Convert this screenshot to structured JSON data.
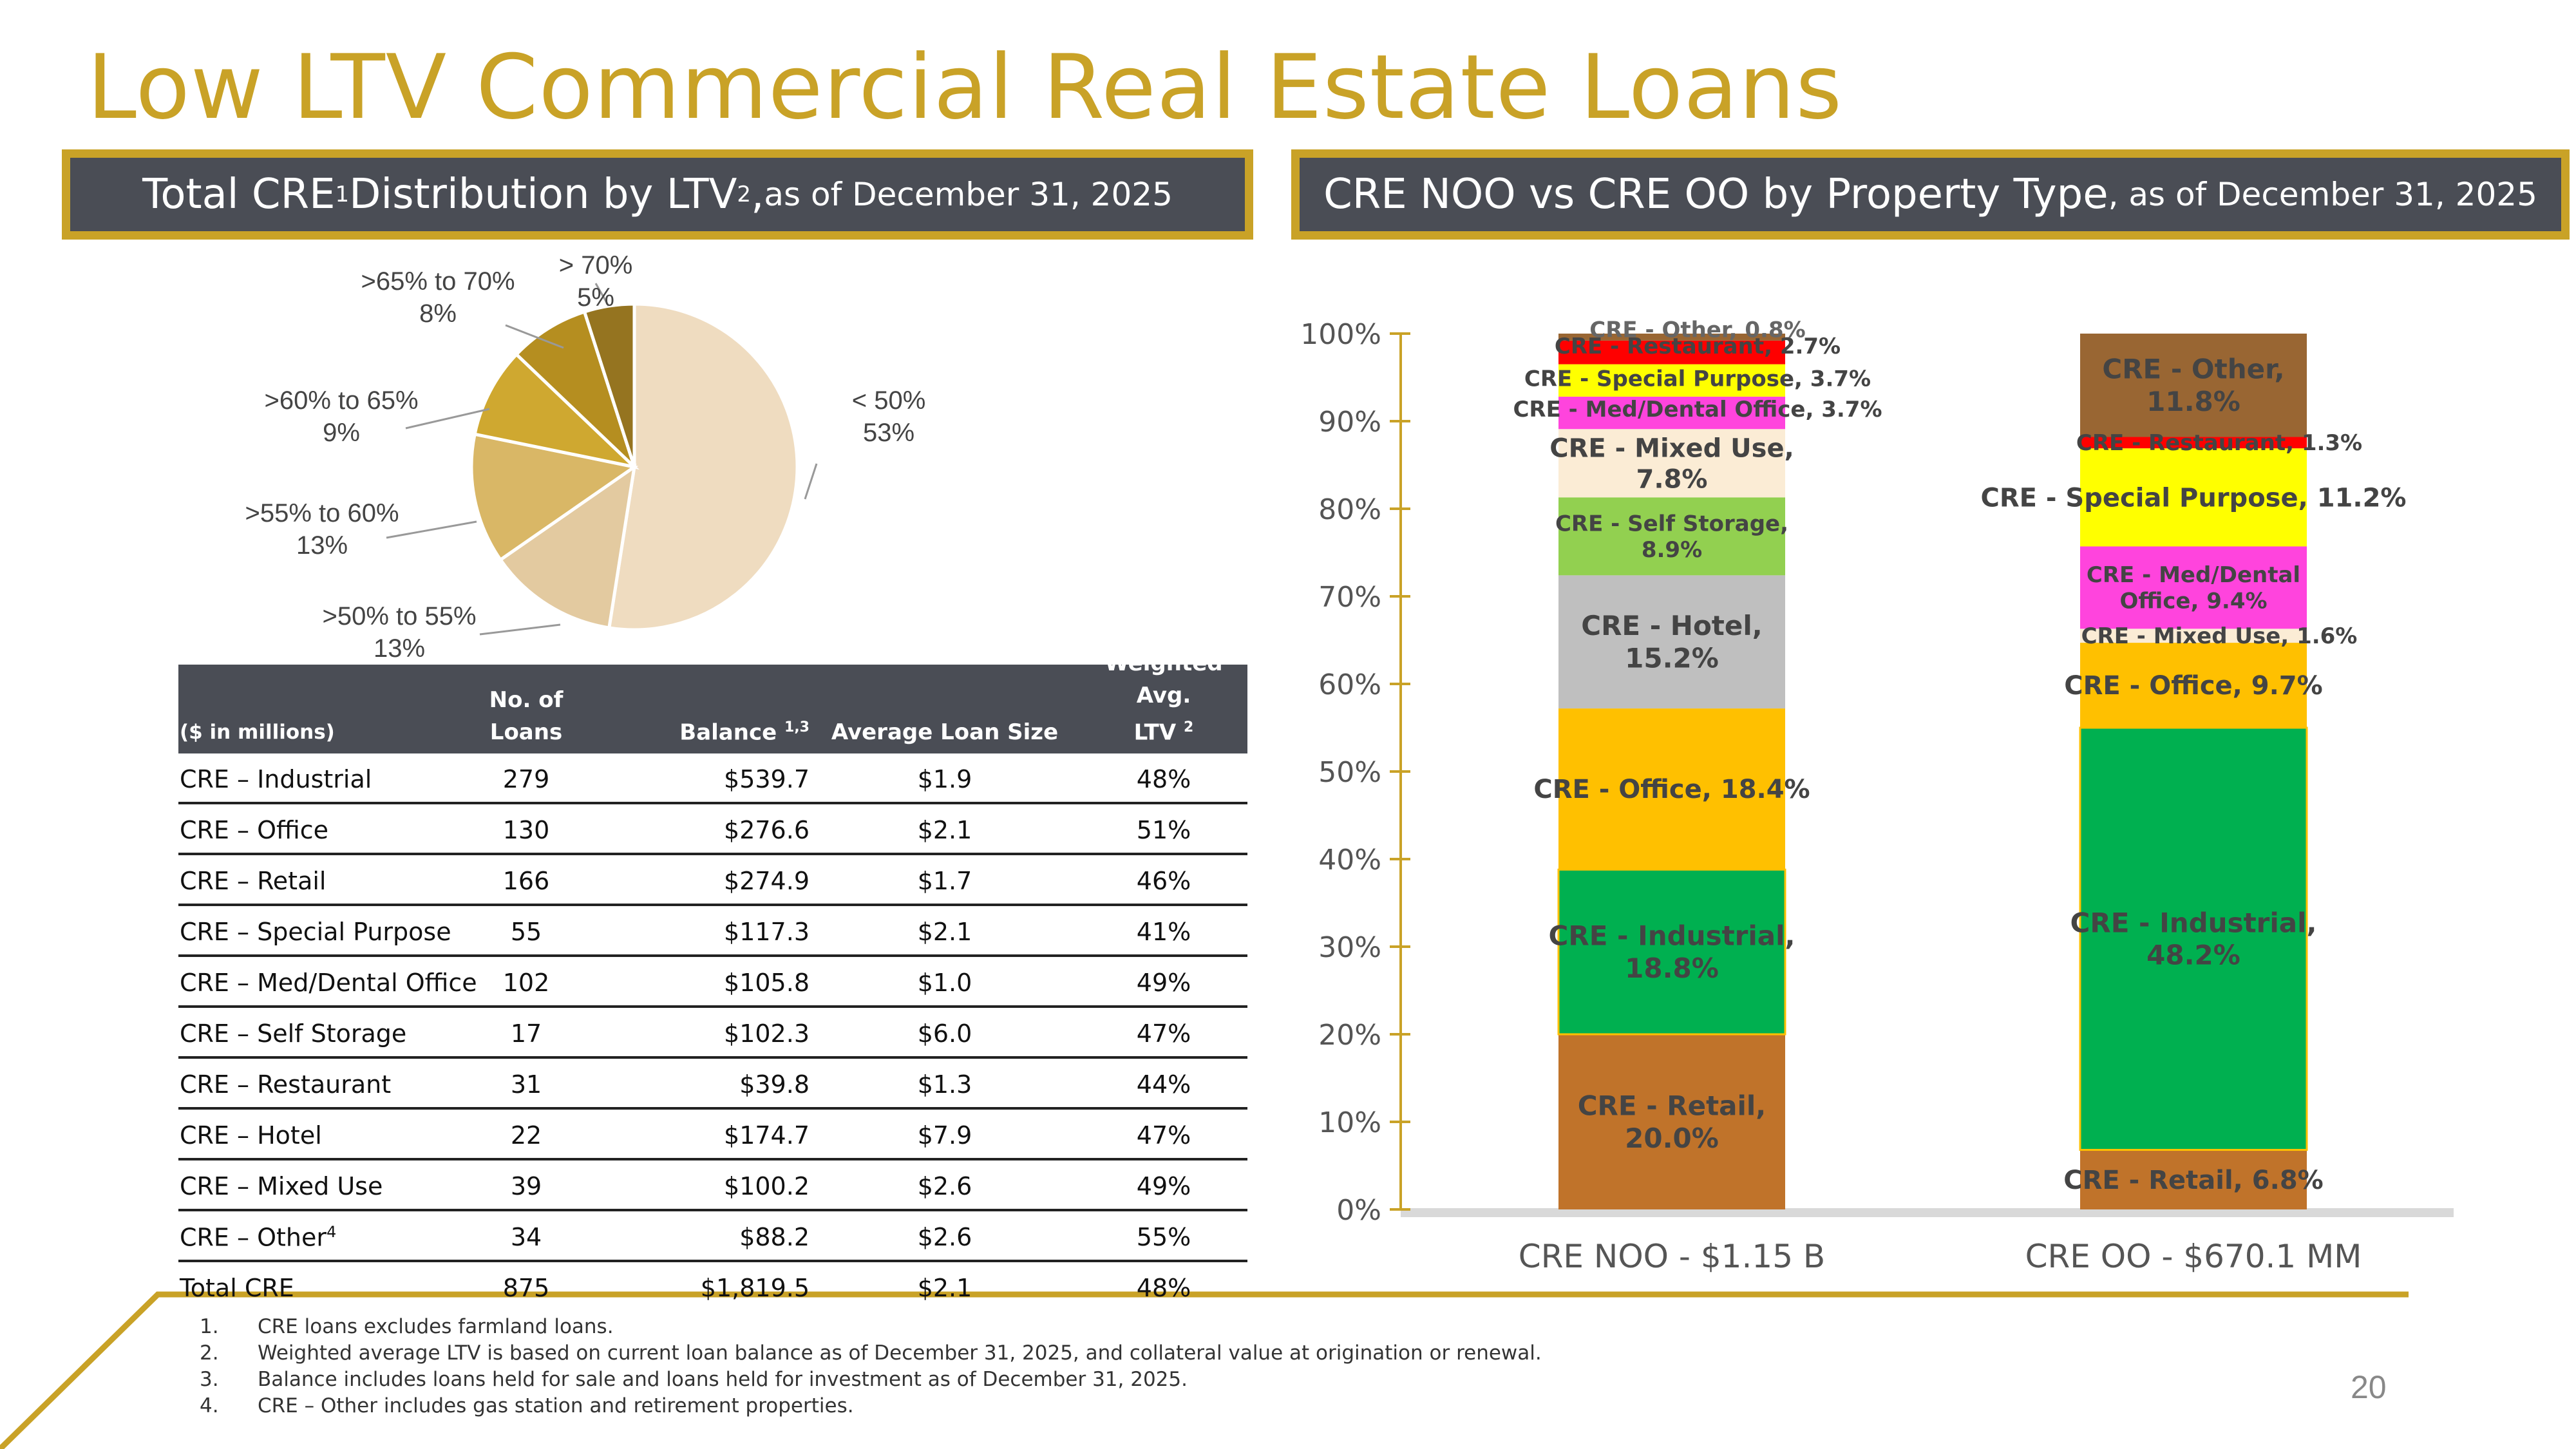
{
  "page": {
    "title": "Low LTV Commercial Real Estate Loans",
    "page_number": "20"
  },
  "left_header": {
    "part1": "Total CRE",
    "sup1": "1",
    "part2": " Distribution by LTV",
    "sup2": "2",
    "part3": ",",
    "date": " as of  December 31, 2025"
  },
  "right_header": {
    "main": "CRE NOO vs CRE OO by Property Type",
    "date": ", as of December 31, 2025"
  },
  "colors": {
    "gold": "#c9a227",
    "header_bg": "#4a4d55"
  },
  "chart_data": [
    {
      "type": "pie",
      "slices": [
        {
          "label": "< 50%",
          "pct_label": "53%",
          "value": 53,
          "color": "#efdcc0"
        },
        {
          "label": ">50% to 55%",
          "pct_label": "13%",
          "value": 13,
          "color": "#e3caa0"
        },
        {
          "label": ">55% to 60%",
          "pct_label": "13%",
          "value": 13,
          "color": "#d9b766"
        },
        {
          "label": ">60% to 65%",
          "pct_label": "9%",
          "value": 9,
          "color": "#cfa830"
        },
        {
          "label": ">65% to 70%",
          "pct_label": "8%",
          "value": 8,
          "color": "#b58e20"
        },
        {
          "label": "> 70%",
          "pct_label": "5%",
          "value": 5,
          "color": "#957420"
        }
      ]
    },
    {
      "type": "bar",
      "stacked": true,
      "ylim": [
        0,
        100
      ],
      "yticks": [
        "0%",
        "10%",
        "20%",
        "30%",
        "40%",
        "50%",
        "60%",
        "70%",
        "80%",
        "90%",
        "100%"
      ],
      "categories": [
        "CRE NOO - $1.15 B",
        "CRE OO - $670.1 MM"
      ],
      "series": [
        {
          "name": "CRE - Retail",
          "color": "#c0732a",
          "values": [
            20.0,
            6.8
          ],
          "labels": [
            "CRE - Retail,\n20.0%",
            "CRE - Retail, 6.8%"
          ]
        },
        {
          "name": "CRE - Industrial",
          "color": "#00b050",
          "values": [
            18.8,
            48.2
          ],
          "labels": [
            "CRE - Industrial,\n18.8%",
            "CRE - Industrial,\n48.2%"
          ]
        },
        {
          "name": "CRE - Office",
          "color": "#ffc000",
          "values": [
            18.4,
            9.7
          ],
          "labels": [
            "CRE - Office, 18.4%",
            "CRE - Office, 9.7%"
          ]
        },
        {
          "name": "CRE - Hotel",
          "color": "#bfbfbf",
          "values": [
            15.2,
            0
          ],
          "labels": [
            "CRE - Hotel,\n15.2%",
            ""
          ]
        },
        {
          "name": "CRE - Self Storage",
          "color": "#92d050",
          "values": [
            8.9,
            0
          ],
          "labels": [
            "CRE - Self Storage,\n8.9%",
            ""
          ]
        },
        {
          "name": "CRE - Mixed Use",
          "color": "#fbecd5",
          "values": [
            7.8,
            1.6
          ],
          "labels": [
            "CRE - Mixed Use,\n7.8%",
            "CRE - Mixed Use, 1.6%"
          ]
        },
        {
          "name": "CRE - Med/Dental Office",
          "color": "#ff44dd",
          "values": [
            3.7,
            9.4
          ],
          "labels": [
            "CRE - Med/Dental Office, 3.7%",
            "CRE - Med/Dental\nOffice, 9.4%"
          ]
        },
        {
          "name": "CRE - Special Purpose",
          "color": "#ffff00",
          "values": [
            3.7,
            11.2
          ],
          "labels": [
            "CRE - Special Purpose, 3.7%",
            "CRE - Special Purpose, 11.2%"
          ]
        },
        {
          "name": "CRE - Restaurant",
          "color": "#ff0000",
          "values": [
            2.7,
            1.3
          ],
          "labels": [
            "CRE - Restaurant, 2.7%",
            "CRE - Restaurant, 1.3%"
          ]
        },
        {
          "name": "CRE - Other",
          "color": "#996633",
          "values": [
            0.8,
            11.8
          ],
          "labels": [
            "CRE - Other, 0.8%",
            "CRE - Other,\n11.8%"
          ]
        }
      ]
    }
  ],
  "table": {
    "headers": {
      "c0": "($ in millions)",
      "c1a": "No. of",
      "c1b": "Loans",
      "c2": "Balance",
      "c2sup": "1,3",
      "c3": "Average Loan Size",
      "c4a": "Weighted Avg.",
      "c4b": "LTV",
      "c4sup": "2"
    },
    "rows": [
      {
        "name": "CRE – Industrial",
        "loans": "279",
        "balance": "$539.7",
        "avg": "$1.9",
        "ltv": "48%"
      },
      {
        "name": "CRE – Office",
        "loans": "130",
        "balance": "$276.6",
        "avg": "$2.1",
        "ltv": "51%"
      },
      {
        "name": "CRE – Retail",
        "loans": "166",
        "balance": "$274.9",
        "avg": "$1.7",
        "ltv": "46%"
      },
      {
        "name": "CRE – Special Purpose",
        "loans": "55",
        "balance": "$117.3",
        "avg": "$2.1",
        "ltv": "41%"
      },
      {
        "name": "CRE – Med/Dental Office",
        "loans": "102",
        "balance": "$105.8",
        "avg": "$1.0",
        "ltv": "49%"
      },
      {
        "name": "CRE – Self Storage",
        "loans": "17",
        "balance": "$102.3",
        "avg": "$6.0",
        "ltv": "47%"
      },
      {
        "name": "CRE – Restaurant",
        "loans": "31",
        "balance": "$39.8",
        "avg": "$1.3",
        "ltv": "44%"
      },
      {
        "name": "CRE – Hotel",
        "loans": "22",
        "balance": "$174.7",
        "avg": "$7.9",
        "ltv": "47%"
      },
      {
        "name": "CRE – Mixed Use",
        "loans": "39",
        "balance": "$100.2",
        "avg": "$2.6",
        "ltv": "49%"
      },
      {
        "name": "CRE – Other",
        "name_sup": "4",
        "loans": "34",
        "balance": "$88.2",
        "avg": "$2.6",
        "ltv": "55%"
      },
      {
        "name": "Total CRE",
        "loans": "875",
        "balance": "$1,819.5",
        "avg": "$2.1",
        "ltv": "48%"
      }
    ]
  },
  "footnotes": [
    {
      "num": "1.",
      "text": "CRE loans excludes farmland loans."
    },
    {
      "num": "2.",
      "text": "Weighted average LTV is based on current loan balance as of December 31, 2025, and collateral value at origination or renewal."
    },
    {
      "num": "3.",
      "text": "Balance includes loans held for sale and loans held for investment as of December 31, 2025."
    },
    {
      "num": "4.",
      "text": "CRE – Other includes gas station and retirement properties."
    }
  ]
}
